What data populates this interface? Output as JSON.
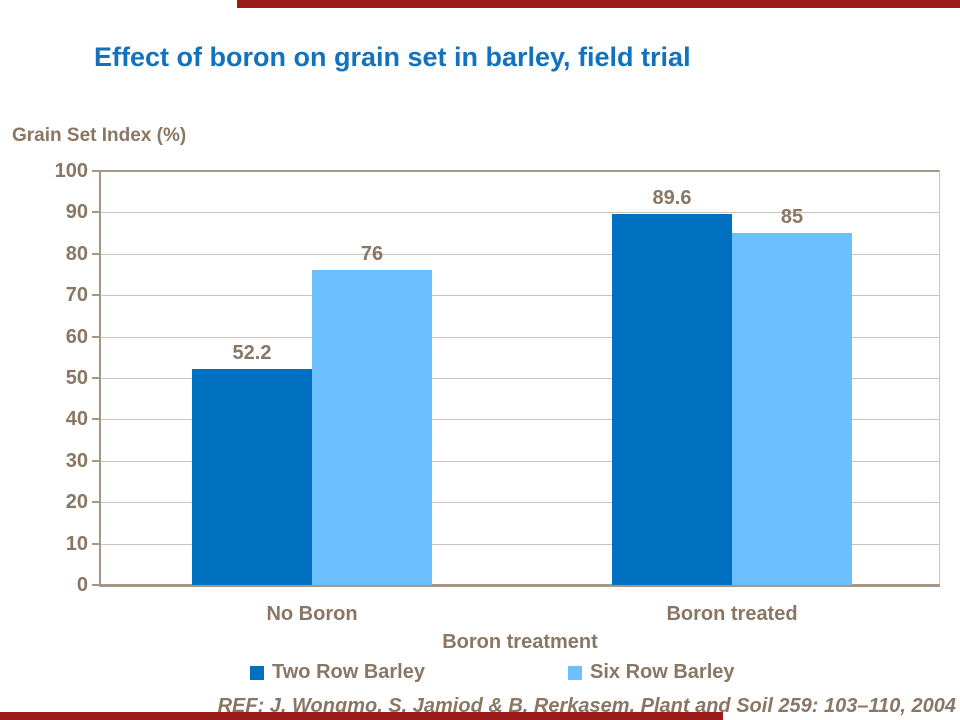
{
  "slide": {
    "title": "Effect of boron on grain set in barley, field trial",
    "reference": "REF: J. Wongmo, S. Jamjod & B. Rerkasem. Plant and Soil 259: 103–110, 2004"
  },
  "colors": {
    "title_blue": "#1272BD",
    "text_brown": "#8A7663",
    "axis_line": "#A49786",
    "gridline": "#CBC2B8",
    "accent_bar_red": "#9B1B1B",
    "series_dark_blue": "#0070C0",
    "series_light_blue": "#6DC0FF"
  },
  "chart_data": {
    "type": "bar",
    "title": "Effect of boron on grain set in barley, field trial",
    "y_axis_title": "Grain Set Index (%)",
    "x_axis_title": "Boron treatment",
    "categories": [
      "No Boron",
      "Boron treated"
    ],
    "series": [
      {
        "name": "Two Row Barley",
        "color": "#0070C0",
        "values": [
          52.2,
          89.6
        ],
        "labels": [
          "52.2",
          "89.6"
        ]
      },
      {
        "name": "Six Row Barley",
        "color": "#6DC0FF",
        "values": [
          76,
          85
        ],
        "labels": [
          "76",
          "85"
        ]
      }
    ],
    "ylim": [
      0,
      100
    ],
    "y_ticks": [
      0,
      10,
      20,
      30,
      40,
      50,
      60,
      70,
      80,
      90,
      100
    ],
    "grid": "horizontal",
    "legend_position": "bottom"
  }
}
